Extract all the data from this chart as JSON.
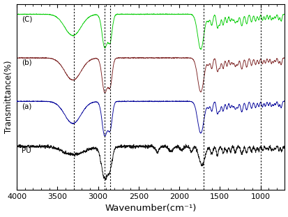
{
  "title": "",
  "xlabel": "Wavenumber(cm⁻¹)",
  "ylabel": "Transmittance(%)",
  "xlim": [
    4000,
    700
  ],
  "x_ticks": [
    4000,
    3500,
    3000,
    2500,
    2000,
    1500,
    1000
  ],
  "dotted_lines": [
    3300,
    2920,
    2850,
    1700,
    1000
  ],
  "labels": [
    "(C)",
    "(b)",
    "(a)",
    "PU"
  ],
  "colors": {
    "C": "#00cc00",
    "b": "#7B2020",
    "a": "#000099",
    "PU": "#111111"
  },
  "background": "#ffffff",
  "fig_width": 4.14,
  "fig_height": 3.11,
  "dpi": 100
}
